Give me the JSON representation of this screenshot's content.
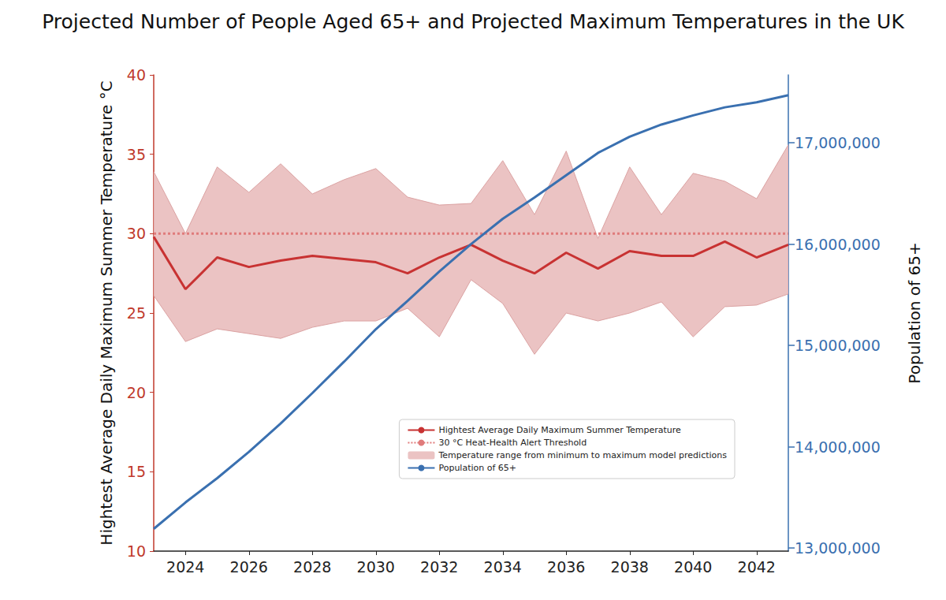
{
  "chart_data": {
    "type": "line",
    "title": "Projected Number of People Aged 65+ and Projected Maximum Temperatures in the UK",
    "y_label": "Hightest Average Daily Maximum Summer Temperature °C",
    "y2_label": "Population of 65+",
    "x": [
      2023,
      2024,
      2025,
      2026,
      2027,
      2028,
      2029,
      2030,
      2031,
      2032,
      2033,
      2034,
      2035,
      2036,
      2037,
      2038,
      2039,
      2040,
      2041,
      2042,
      2043
    ],
    "xlim": [
      2023,
      2043
    ],
    "xticks": [
      2024,
      2026,
      2028,
      2030,
      2032,
      2034,
      2036,
      2038,
      2040,
      2042
    ],
    "ylim": [
      10,
      40
    ],
    "yticks": [
      10,
      15,
      20,
      25,
      30,
      35,
      40
    ],
    "y2lim": [
      12970000,
      17670000
    ],
    "y2ticks": [
      {
        "value": 13000000,
        "label": "13,000,000"
      },
      {
        "value": 14000000,
        "label": "14,000,000"
      },
      {
        "value": 15000000,
        "label": "15,000,000"
      },
      {
        "value": 16000000,
        "label": "16,000,000"
      },
      {
        "value": 17000000,
        "label": "17,000,000"
      }
    ],
    "grid": false,
    "legend": "lower right",
    "series": [
      {
        "name": "Hightest Average Daily Maximum Summer Temperature",
        "type": "line",
        "color": "#c83232",
        "line_style": "solid",
        "values": [
          29.8,
          26.5,
          28.5,
          27.9,
          28.3,
          28.6,
          28.4,
          28.2,
          27.5,
          28.5,
          29.3,
          28.3,
          27.5,
          28.8,
          27.8,
          28.9,
          28.6,
          28.6,
          29.5,
          28.5,
          29.3
        ]
      },
      {
        "name": "30 °C Heat-Health Alert Threshold",
        "type": "line",
        "color": "#e07b7b",
        "line_style": "dotted",
        "values": [
          30,
          30,
          30,
          30,
          30,
          30,
          30,
          30,
          30,
          30,
          30,
          30,
          30,
          30,
          30,
          30,
          30,
          30,
          30,
          30,
          30
        ]
      },
      {
        "name": "Temperature range from minimum to maximum model predictions",
        "type": "range",
        "color": "#ebc3c3",
        "lower": [
          26.1,
          23.2,
          24.0,
          23.7,
          23.4,
          24.1,
          24.5,
          24.5,
          25.3,
          23.5,
          27.1,
          25.6,
          22.4,
          25.0,
          24.5,
          25.0,
          25.7,
          23.5,
          25.4,
          25.5,
          26.2
        ],
        "upper": [
          33.9,
          30.0,
          34.2,
          32.6,
          34.4,
          32.5,
          33.4,
          34.1,
          32.3,
          31.8,
          31.9,
          34.6,
          31.2,
          35.2,
          29.7,
          34.2,
          31.2,
          33.8,
          33.3,
          32.2,
          35.6
        ]
      },
      {
        "name": "Population of 65+",
        "type": "line",
        "axis": "y2",
        "color": "#3a70b0",
        "line_style": "solid",
        "values": [
          13190000,
          13450000,
          13690000,
          13950000,
          14230000,
          14530000,
          14840000,
          15160000,
          15440000,
          15730000,
          16000000,
          16250000,
          16460000,
          16680000,
          16900000,
          17060000,
          17180000,
          17270000,
          17350000,
          17400000,
          17470000
        ]
      }
    ]
  }
}
